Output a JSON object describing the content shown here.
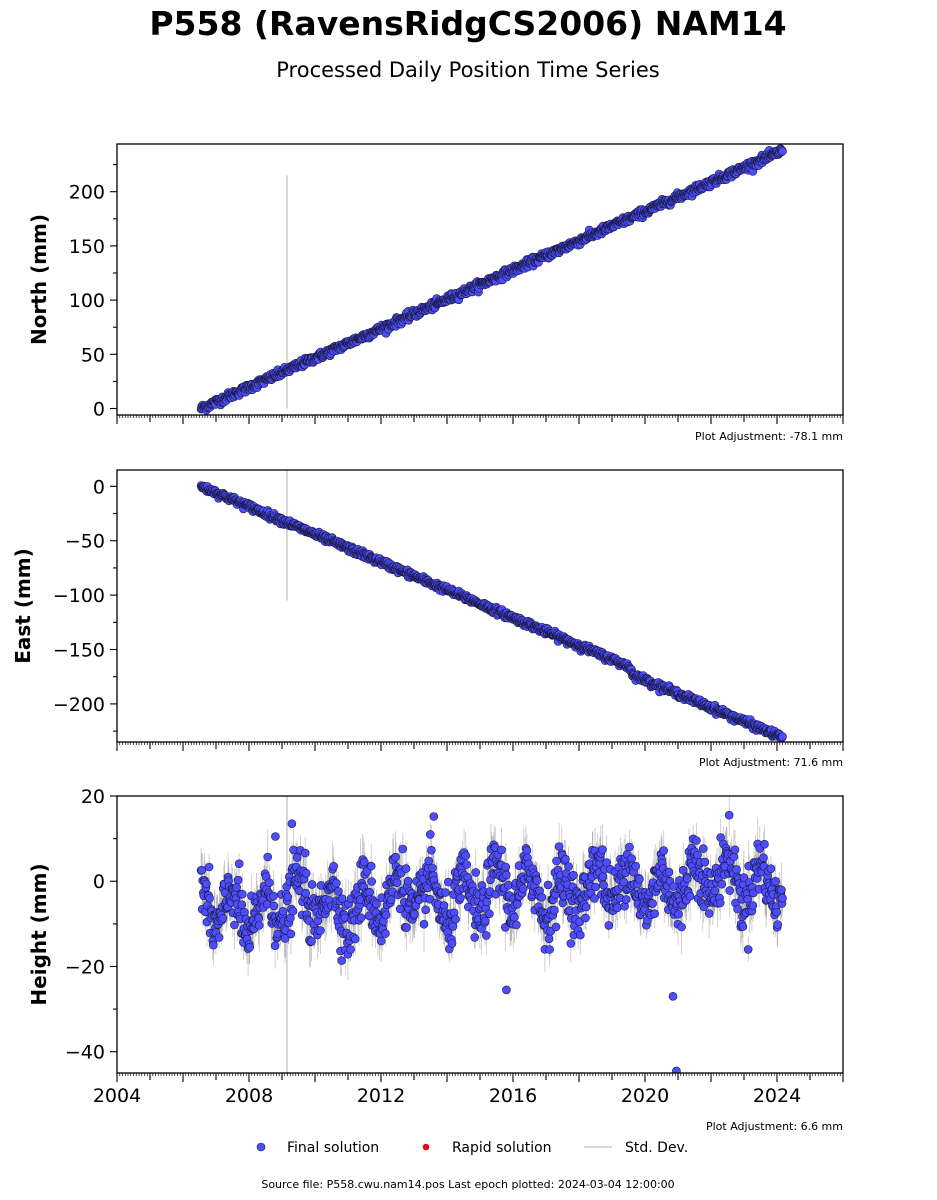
{
  "figure": {
    "title": "P558 (RavensRidgCS2006) NAM14",
    "subtitle": "Processed Daily Position Time Series",
    "source_note": "Source file: P558.cwu.nam14.pos  Last epoch plotted: 2024-03-04 12:00:00"
  },
  "legend": {
    "final": "Final solution",
    "rapid": "Rapid solution",
    "std": "Std. Dev."
  },
  "colors": {
    "final_fill": "#4d4dff",
    "final_edge": "#1a1a40",
    "rapid_fill": "#e01010",
    "std_dev": "#b0b0b0",
    "std_dev_dense": "#555555"
  },
  "chart_data": [
    {
      "type": "scatter",
      "ylabel": "North (mm)",
      "adjustment": "Plot Adjustment: -78.1 mm",
      "xlim": [
        2004,
        2026
      ],
      "ylim": [
        -6,
        244
      ],
      "yticks": [
        0,
        50,
        100,
        150,
        200
      ],
      "xticks": [
        2004,
        2008,
        2012,
        2016,
        2020,
        2024
      ],
      "show_xtick_labels": false,
      "data_start": 2006.55,
      "data_end": 2024.17,
      "trend": {
        "start_value": 0,
        "end_value": 238
      },
      "outlier": {
        "x": 2009.15,
        "low": 0,
        "high": 215
      },
      "noise": 1.8
    },
    {
      "type": "scatter",
      "ylabel": "East (mm)",
      "adjustment": "Plot Adjustment: 71.6 mm",
      "xlim": [
        2004,
        2026
      ],
      "ylim": [
        -235,
        15
      ],
      "yticks": [
        0,
        -50,
        -100,
        -150,
        -200
      ],
      "xticks": [
        2004,
        2008,
        2012,
        2016,
        2020,
        2024
      ],
      "show_xtick_labels": false,
      "data_start": 2006.55,
      "data_end": 2024.17,
      "trend": {
        "start_value": 0,
        "end_value": -225
      },
      "offset_step": {
        "x": 2019.5,
        "value": -6
      },
      "outlier": {
        "x": 2009.15,
        "low": -105,
        "high": 15
      },
      "noise": 1.5
    },
    {
      "type": "scatter",
      "ylabel": "Height (mm)",
      "adjustment": "Plot Adjustment: 6.6 mm",
      "xlim": [
        2004,
        2026
      ],
      "ylim": [
        -45,
        20
      ],
      "yticks": [
        20,
        0,
        -20,
        -40
      ],
      "xticks": [
        2004,
        2008,
        2012,
        2016,
        2020,
        2024
      ],
      "show_xtick_labels": true,
      "data_start": 2006.55,
      "data_end": 2024.17,
      "base_level": -7,
      "drift_per_year": 0.45,
      "seasonal_amplitude": 5,
      "noise": 3.5,
      "outlier": {
        "x": 2009.15,
        "low": -45,
        "high": 20
      },
      "extra_points": [
        {
          "x": 2009.3,
          "y": 13.5
        },
        {
          "x": 2015.8,
          "y": -25.5
        },
        {
          "x": 2020.85,
          "y": -27
        },
        {
          "x": 2020.95,
          "y": -44.5
        },
        {
          "x": 2008.8,
          "y": 10.5
        },
        {
          "x": 2013.6,
          "y": 15.2
        }
      ]
    }
  ]
}
